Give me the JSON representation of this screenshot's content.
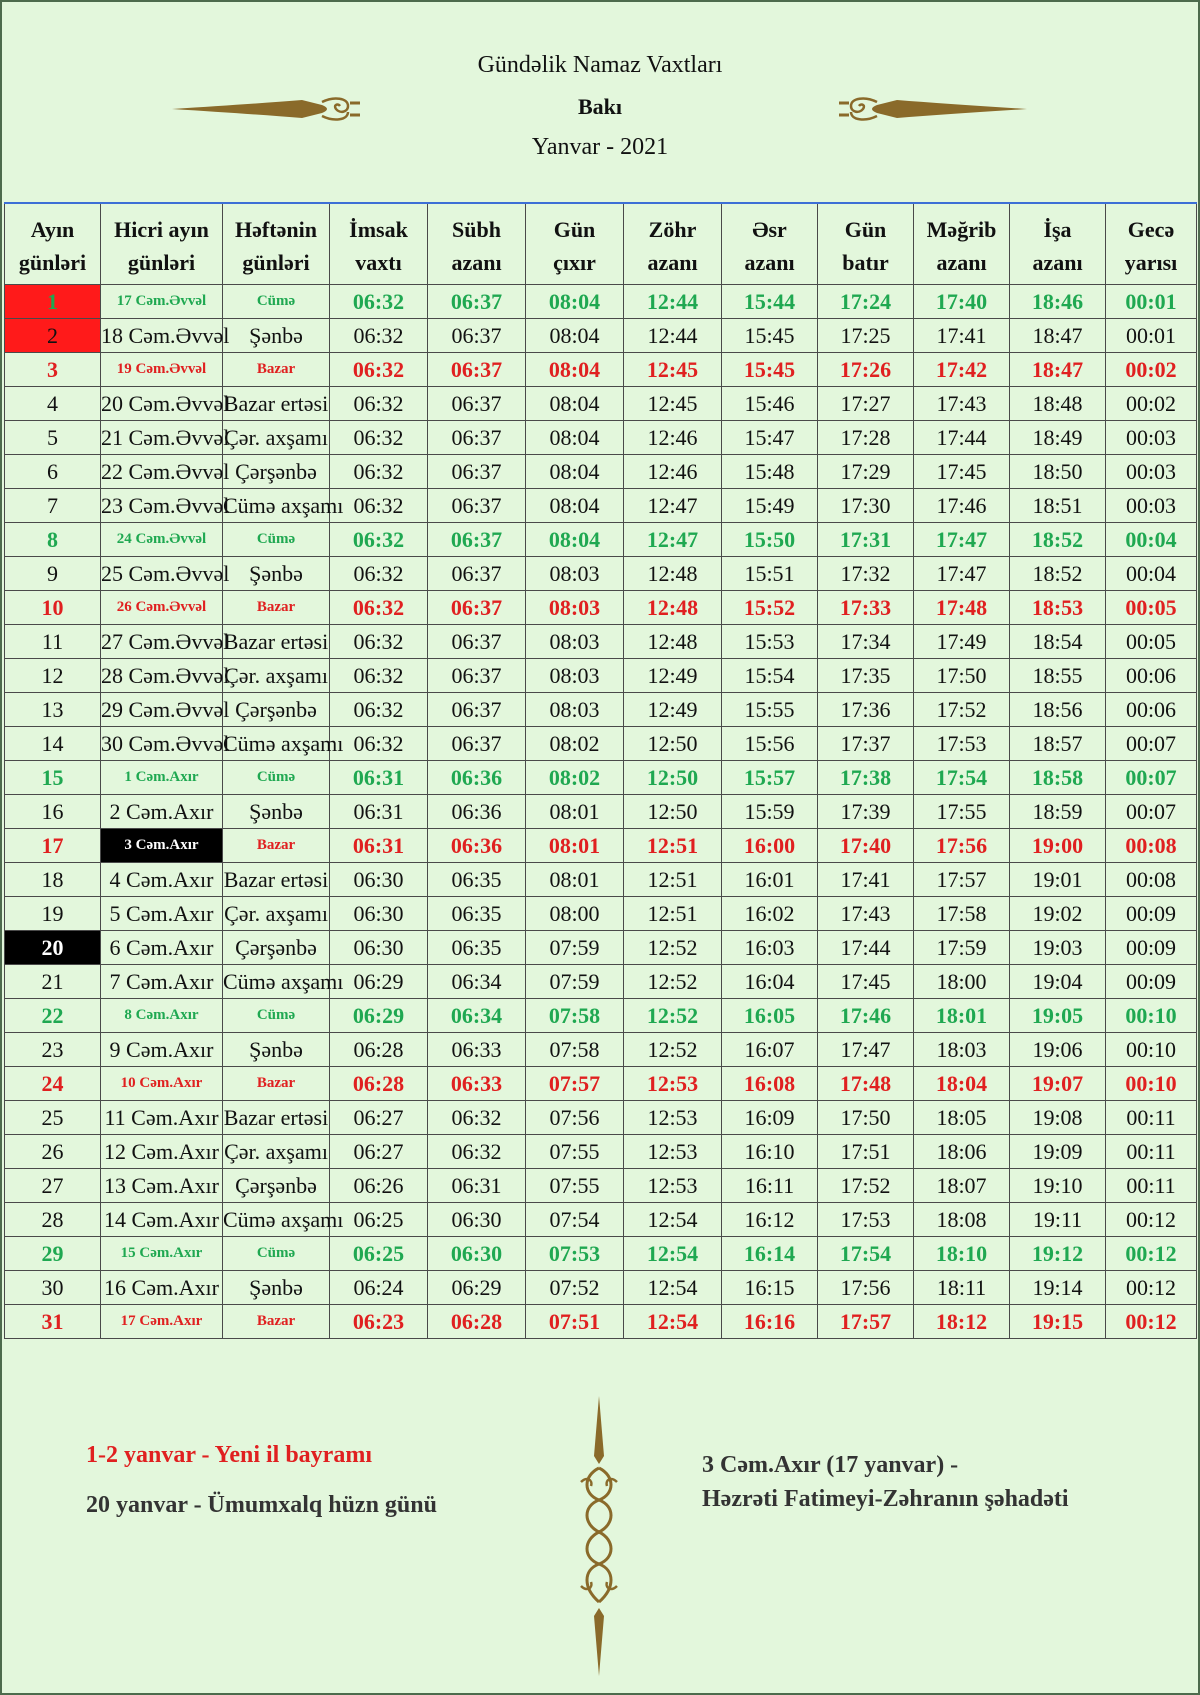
{
  "header": {
    "title": "Gündəlik Namaz Vaxtları",
    "city": "Bakı",
    "month": "Yanvar - 2021"
  },
  "colors": {
    "friday": "#1fa851",
    "sunday": "#e02020",
    "background": "#e3f7dc"
  },
  "columns": [
    [
      "Ayın",
      "günləri"
    ],
    [
      "Hicri ayın",
      "günləri"
    ],
    [
      "Həftənin",
      "günləri"
    ],
    [
      "İmsak",
      "vaxtı"
    ],
    [
      "Sübh",
      "azanı"
    ],
    [
      "Gün",
      "çıxır"
    ],
    [
      "Zöhr",
      "azanı"
    ],
    [
      "Əsr",
      "azanı"
    ],
    [
      "Gün",
      "batır"
    ],
    [
      "Məğrib",
      "azanı"
    ],
    [
      "İşa",
      "azanı"
    ],
    [
      "Gecə",
      "yarısı"
    ]
  ],
  "rows": [
    [
      "1",
      "17 Cəm.Əvvəl",
      "Cümə",
      "06:32",
      "06:37",
      "08:04",
      "12:44",
      "15:44",
      "17:24",
      "17:40",
      "18:46",
      "00:01"
    ],
    [
      "2",
      "18 Cəm.Əvvəl",
      "Şənbə",
      "06:32",
      "06:37",
      "08:04",
      "12:44",
      "15:45",
      "17:25",
      "17:41",
      "18:47",
      "00:01"
    ],
    [
      "3",
      "19 Cəm.Əvvəl",
      "Bazar",
      "06:32",
      "06:37",
      "08:04",
      "12:45",
      "15:45",
      "17:26",
      "17:42",
      "18:47",
      "00:02"
    ],
    [
      "4",
      "20 Cəm.Əvvəl",
      "Bazar ertəsi",
      "06:32",
      "06:37",
      "08:04",
      "12:45",
      "15:46",
      "17:27",
      "17:43",
      "18:48",
      "00:02"
    ],
    [
      "5",
      "21 Cəm.Əvvəl",
      "Çər. axşamı",
      "06:32",
      "06:37",
      "08:04",
      "12:46",
      "15:47",
      "17:28",
      "17:44",
      "18:49",
      "00:03"
    ],
    [
      "6",
      "22 Cəm.Əvvəl",
      "Çərşənbə",
      "06:32",
      "06:37",
      "08:04",
      "12:46",
      "15:48",
      "17:29",
      "17:45",
      "18:50",
      "00:03"
    ],
    [
      "7",
      "23 Cəm.Əvvəl",
      "Cümə axşamı",
      "06:32",
      "06:37",
      "08:04",
      "12:47",
      "15:49",
      "17:30",
      "17:46",
      "18:51",
      "00:03"
    ],
    [
      "8",
      "24 Cəm.Əvvəl",
      "Cümə",
      "06:32",
      "06:37",
      "08:04",
      "12:47",
      "15:50",
      "17:31",
      "17:47",
      "18:52",
      "00:04"
    ],
    [
      "9",
      "25 Cəm.Əvvəl",
      "Şənbə",
      "06:32",
      "06:37",
      "08:03",
      "12:48",
      "15:51",
      "17:32",
      "17:47",
      "18:52",
      "00:04"
    ],
    [
      "10",
      "26 Cəm.Əvvəl",
      "Bazar",
      "06:32",
      "06:37",
      "08:03",
      "12:48",
      "15:52",
      "17:33",
      "17:48",
      "18:53",
      "00:05"
    ],
    [
      "11",
      "27 Cəm.Əvvəl",
      "Bazar ertəsi",
      "06:32",
      "06:37",
      "08:03",
      "12:48",
      "15:53",
      "17:34",
      "17:49",
      "18:54",
      "00:05"
    ],
    [
      "12",
      "28 Cəm.Əvvəl",
      "Çər. axşamı",
      "06:32",
      "06:37",
      "08:03",
      "12:49",
      "15:54",
      "17:35",
      "17:50",
      "18:55",
      "00:06"
    ],
    [
      "13",
      "29 Cəm.Əvvəl",
      "Çərşənbə",
      "06:32",
      "06:37",
      "08:03",
      "12:49",
      "15:55",
      "17:36",
      "17:52",
      "18:56",
      "00:06"
    ],
    [
      "14",
      "30 Cəm.Əvvəl",
      "Cümə axşamı",
      "06:32",
      "06:37",
      "08:02",
      "12:50",
      "15:56",
      "17:37",
      "17:53",
      "18:57",
      "00:07"
    ],
    [
      "15",
      "1 Cəm.Axır",
      "Cümə",
      "06:31",
      "06:36",
      "08:02",
      "12:50",
      "15:57",
      "17:38",
      "17:54",
      "18:58",
      "00:07"
    ],
    [
      "16",
      "2 Cəm.Axır",
      "Şənbə",
      "06:31",
      "06:36",
      "08:01",
      "12:50",
      "15:59",
      "17:39",
      "17:55",
      "18:59",
      "00:07"
    ],
    [
      "17",
      "3 Cəm.Axır",
      "Bazar",
      "06:31",
      "06:36",
      "08:01",
      "12:51",
      "16:00",
      "17:40",
      "17:56",
      "19:00",
      "00:08"
    ],
    [
      "18",
      "4 Cəm.Axır",
      "Bazar ertəsi",
      "06:30",
      "06:35",
      "08:01",
      "12:51",
      "16:01",
      "17:41",
      "17:57",
      "19:01",
      "00:08"
    ],
    [
      "19",
      "5 Cəm.Axır",
      "Çər. axşamı",
      "06:30",
      "06:35",
      "08:00",
      "12:51",
      "16:02",
      "17:43",
      "17:58",
      "19:02",
      "00:09"
    ],
    [
      "20",
      "6 Cəm.Axır",
      "Çərşənbə",
      "06:30",
      "06:35",
      "07:59",
      "12:52",
      "16:03",
      "17:44",
      "17:59",
      "19:03",
      "00:09"
    ],
    [
      "21",
      "7 Cəm.Axır",
      "Cümə axşamı",
      "06:29",
      "06:34",
      "07:59",
      "12:52",
      "16:04",
      "17:45",
      "18:00",
      "19:04",
      "00:09"
    ],
    [
      "22",
      "8 Cəm.Axır",
      "Cümə",
      "06:29",
      "06:34",
      "07:58",
      "12:52",
      "16:05",
      "17:46",
      "18:01",
      "19:05",
      "00:10"
    ],
    [
      "23",
      "9 Cəm.Axır",
      "Şənbə",
      "06:28",
      "06:33",
      "07:58",
      "12:52",
      "16:07",
      "17:47",
      "18:03",
      "19:06",
      "00:10"
    ],
    [
      "24",
      "10 Cəm.Axır",
      "Bazar",
      "06:28",
      "06:33",
      "07:57",
      "12:53",
      "16:08",
      "17:48",
      "18:04",
      "19:07",
      "00:10"
    ],
    [
      "25",
      "11 Cəm.Axır",
      "Bazar ertəsi",
      "06:27",
      "06:32",
      "07:56",
      "12:53",
      "16:09",
      "17:50",
      "18:05",
      "19:08",
      "00:11"
    ],
    [
      "26",
      "12 Cəm.Axır",
      "Çər. axşamı",
      "06:27",
      "06:32",
      "07:55",
      "12:53",
      "16:10",
      "17:51",
      "18:06",
      "19:09",
      "00:11"
    ],
    [
      "27",
      "13 Cəm.Axır",
      "Çərşənbə",
      "06:26",
      "06:31",
      "07:55",
      "12:53",
      "16:11",
      "17:52",
      "18:07",
      "19:10",
      "00:11"
    ],
    [
      "28",
      "14 Cəm.Axır",
      "Cümə axşamı",
      "06:25",
      "06:30",
      "07:54",
      "12:54",
      "16:12",
      "17:53",
      "18:08",
      "19:11",
      "00:12"
    ],
    [
      "29",
      "15 Cəm.Axır",
      "Cümə",
      "06:25",
      "06:30",
      "07:53",
      "12:54",
      "16:14",
      "17:54",
      "18:10",
      "19:12",
      "00:12"
    ],
    [
      "30",
      "16 Cəm.Axır",
      "Şənbə",
      "06:24",
      "06:29",
      "07:52",
      "12:54",
      "16:15",
      "17:56",
      "18:11",
      "19:14",
      "00:12"
    ],
    [
      "31",
      "17 Cəm.Axır",
      "Bazar",
      "06:23",
      "06:28",
      "07:51",
      "12:54",
      "16:16",
      "17:57",
      "18:12",
      "19:15",
      "00:12"
    ]
  ],
  "footer": {
    "note_new_year": "1-2 yanvar - Yeni il bayramı",
    "note_mourning": "20 yanvar - Ümumxalq hüzn günü",
    "note_fatima_line1": "3 Cəm.Axır (17 yanvar) -",
    "note_fatima_line2": "Həzrəti Fatimeyi-Zəhranın şəhadəti"
  }
}
